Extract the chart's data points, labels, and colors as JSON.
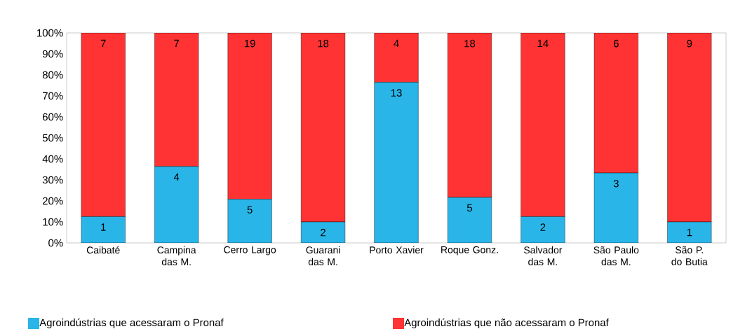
{
  "chart_data": {
    "type": "bar",
    "stacked": true,
    "categories": [
      "Caibaté",
      "Campina das M.",
      "Cerro Largo",
      "Guarani das M.",
      "Porto Xavier",
      "Roque Gonz.",
      "Salvador das M.",
      "São Paulo das M.",
      "São P. do Butia"
    ],
    "series": [
      {
        "name": "Agroindústrias que acessaram o Pronaf",
        "color": "#29b5e8",
        "values": [
          12.5,
          36.4,
          20.8,
          10,
          76.5,
          21.7,
          12.5,
          33.3,
          10
        ]
      },
      {
        "name": "Agroindústrias que não acessaram o Pronaf",
        "color": "#ff3333",
        "values": [
          87.5,
          63.6,
          79.2,
          90,
          23.5,
          78.3,
          87.5,
          66.7,
          90
        ]
      }
    ],
    "annotations": [
      {
        "text": "1",
        "x": "Caibaté",
        "y": 12.5
      },
      {
        "text": "4",
        "x": "Campina das M.",
        "y": 36.4
      },
      {
        "text": "5",
        "x": "Cerro Largo",
        "y": 20.8
      },
      {
        "text": "2",
        "x": "Guarani das M.",
        "y": 10
      },
      {
        "text": "13",
        "x": "Porto Xavier",
        "y": 76.5
      },
      {
        "text": "5",
        "x": "Roque Gonz.",
        "y": 21.7
      },
      {
        "text": "2",
        "x": "Salvador das M.",
        "y": 12.5
      },
      {
        "text": "3",
        "x": "São Paulo das M.",
        "y": 33.3
      },
      {
        "text": "1",
        "x": "São P. do Butia",
        "y": 10
      },
      {
        "text": "7",
        "x": "Caibaté",
        "y": 100
      },
      {
        "text": "7",
        "x": "Campina das M.",
        "y": 100
      },
      {
        "text": "19",
        "x": "Cerro Largo",
        "y": 100
      },
      {
        "text": "18",
        "x": "Guarani das M.",
        "y": 100
      },
      {
        "text": "4",
        "x": "Porto Xavier",
        "y": 100
      },
      {
        "text": "18",
        "x": "Roque Gonz.",
        "y": 100
      },
      {
        "text": "14",
        "x": "Salvador das M.",
        "y": 100
      },
      {
        "text": "6",
        "x": "São Paulo das M.",
        "y": 100
      },
      {
        "text": "9",
        "x": "São P. do Butia",
        "y": 100
      }
    ],
    "ylim": [
      0,
      100
    ],
    "yticks": [
      {
        "value": 0,
        "label": "0%"
      },
      {
        "value": 10,
        "label": "10%"
      },
      {
        "value": 20,
        "label": "20%"
      },
      {
        "value": 30,
        "label": "30%"
      },
      {
        "value": 40,
        "label": "40%"
      },
      {
        "value": 50,
        "label": "50%"
      },
      {
        "value": 60,
        "label": "60%"
      },
      {
        "value": 70,
        "label": "70%"
      },
      {
        "value": 80,
        "label": "80%"
      },
      {
        "value": 90,
        "label": "90%"
      },
      {
        "value": 100,
        "label": "100%"
      }
    ],
    "legend": "bottom",
    "grid": false
  }
}
